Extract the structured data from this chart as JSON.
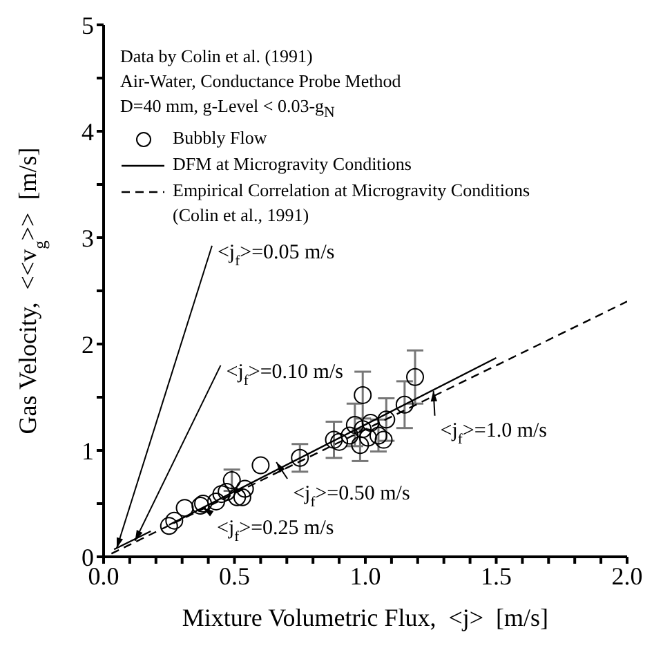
{
  "chart_data": {
    "type": "scatter",
    "xlabel": "Mixture Volumetric Flux,  <j>  [m/s]",
    "ylabel": "Gas Velocity,  <<v$_{g}$>>  [m/s]",
    "xlim": [
      0,
      2
    ],
    "ylim": [
      0,
      5
    ],
    "xticks": [
      {
        "value": 0,
        "label": "0.0"
      },
      {
        "value": 0.1,
        "label": null
      },
      {
        "value": 0.2,
        "label": null
      },
      {
        "value": 0.3,
        "label": null
      },
      {
        "value": 0.4,
        "label": null
      },
      {
        "value": 0.5,
        "label": "0.5"
      },
      {
        "value": 0.6,
        "label": null
      },
      {
        "value": 0.7,
        "label": null
      },
      {
        "value": 0.8,
        "label": null
      },
      {
        "value": 0.9,
        "label": null
      },
      {
        "value": 1,
        "label": "1.0"
      },
      {
        "value": 1.1,
        "label": null
      },
      {
        "value": 1.2,
        "label": null
      },
      {
        "value": 1.3,
        "label": null
      },
      {
        "value": 1.4,
        "label": null
      },
      {
        "value": 1.5,
        "label": "1.5"
      },
      {
        "value": 1.6,
        "label": null
      },
      {
        "value": 1.7,
        "label": null
      },
      {
        "value": 1.8,
        "label": null
      },
      {
        "value": 1.9,
        "label": null
      },
      {
        "value": 2,
        "label": "2.0"
      }
    ],
    "yticks": [
      0,
      {
        "value": 0.5,
        "label": null
      },
      1,
      {
        "value": 1.5,
        "label": null
      },
      2,
      {
        "value": 2.5,
        "label": null
      },
      3,
      {
        "value": 3.5,
        "label": null
      },
      4,
      {
        "value": 4.5,
        "label": null
      },
      5
    ],
    "grid": false,
    "legend": "top left",
    "series": [
      {
        "name": "Bubbly Flow",
        "marker": "circle",
        "color": "#000000",
        "x": [
          0.25,
          0.27,
          0.31,
          0.37,
          0.38,
          0.43,
          0.45,
          0.47,
          0.49,
          0.51,
          0.53,
          0.54,
          0.6,
          0.75,
          0.88,
          0.9,
          0.99,
          0.94,
          0.96,
          0.98,
          0.99,
          1.01,
          1.02,
          1.05,
          1.07,
          1.08,
          1.15,
          1.19
        ],
        "values": [
          0.29,
          0.34,
          0.46,
          0.48,
          0.5,
          0.52,
          0.59,
          0.61,
          0.72,
          0.56,
          0.56,
          0.64,
          0.86,
          0.93,
          1.1,
          1.08,
          1.52,
          1.14,
          1.24,
          1.05,
          1.2,
          1.12,
          1.26,
          1.14,
          1.1,
          1.29,
          1.43,
          1.69
        ],
        "errors": [
          null,
          null,
          null,
          null,
          null,
          null,
          null,
          null,
          0.1,
          null,
          null,
          null,
          null,
          0.13,
          0.17,
          null,
          0.22,
          null,
          0.2,
          0.15,
          null,
          null,
          null,
          0.15,
          null,
          0.2,
          0.22,
          0.25
        ]
      },
      {
        "name": "DFM at Microgravity Conditions",
        "type": "line",
        "line_style": "solid",
        "color": "#000000",
        "x": [
          0.04,
          0.18,
          null,
          0.25,
          1.5
        ],
        "values": [
          0.07,
          0.24,
          null,
          0.3,
          1.87
        ]
      },
      {
        "name": "Empirical Correlation at Microgravity Conditions (Colin et al., 1991)",
        "type": "line",
        "line_style": "dashed",
        "color": "#000000",
        "x": [
          0.03,
          2.0
        ],
        "values": [
          0.03,
          2.4
        ]
      }
    ],
    "annotations": [
      "Data by Colin et al. (1991)",
      "Air-Water, Conductance Probe Method",
      "D=40 mm, g-Level < 0.03-g$_{N}$",
      {
        "text": "<j$_{f}$>=0.05 m/s",
        "x": 0.05,
        "y": 0.08
      },
      {
        "text": "<j$_{f}$>=0.10 m/s",
        "x": 0.12,
        "y": 0.15
      },
      {
        "text": "<j$_{f}$>=0.25 m/s",
        "x": 0.38,
        "y": 0.46
      },
      {
        "text": "<j$_{f}$>=0.50 m/s",
        "x": 0.66,
        "y": 0.89
      },
      {
        "text": "<j$_{f}$>=1.0 m/s",
        "x": 1.26,
        "y": 1.56
      }
    ]
  }
}
